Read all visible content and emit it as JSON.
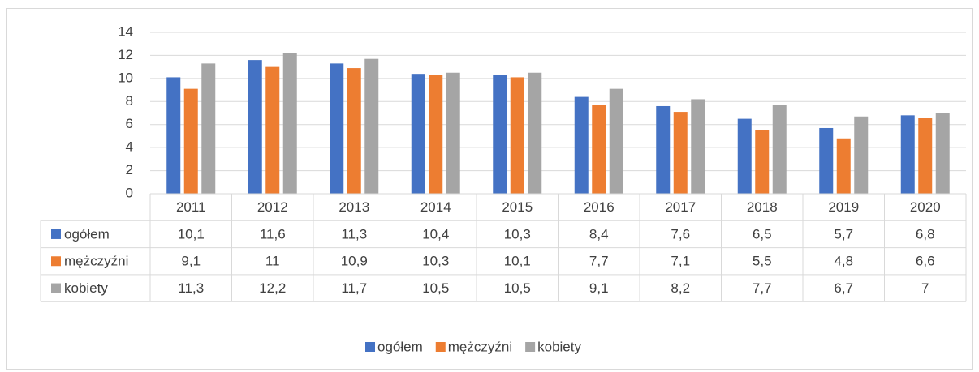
{
  "chart_data": {
    "type": "bar",
    "categories": [
      "2011",
      "2012",
      "2013",
      "2014",
      "2015",
      "2016",
      "2017",
      "2018",
      "2019",
      "2020"
    ],
    "series": [
      {
        "name": "ogółem",
        "color": "#4472c4",
        "values": [
          10.1,
          11.6,
          11.3,
          10.4,
          10.3,
          8.4,
          7.6,
          6.5,
          5.7,
          6.8
        ],
        "value_labels": [
          "10,1",
          "11,6",
          "11,3",
          "10,4",
          "10,3",
          "8,4",
          "7,6",
          "6,5",
          "5,7",
          "6,8"
        ]
      },
      {
        "name": "mężczyźni",
        "color": "#ed7d31",
        "values": [
          9.1,
          11,
          10.9,
          10.3,
          10.1,
          7.7,
          7.1,
          5.5,
          4.8,
          6.6
        ],
        "value_labels": [
          "9,1",
          "11",
          "10,9",
          "10,3",
          "10,1",
          "7,7",
          "7,1",
          "5,5",
          "4,8",
          "6,6"
        ]
      },
      {
        "name": "kobiety",
        "color": "#a5a5a5",
        "values": [
          11.3,
          12.2,
          11.7,
          10.5,
          10.5,
          9.1,
          8.2,
          7.7,
          6.7,
          7
        ],
        "value_labels": [
          "11,3",
          "12,2",
          "11,7",
          "10,5",
          "10,5",
          "9,1",
          "8,2",
          "7,7",
          "6,7",
          "7"
        ]
      }
    ],
    "ylim": [
      0,
      14
    ],
    "yticks": [
      0,
      2,
      4,
      6,
      8,
      10,
      12,
      14
    ],
    "grid": true,
    "legend": "bottom"
  }
}
